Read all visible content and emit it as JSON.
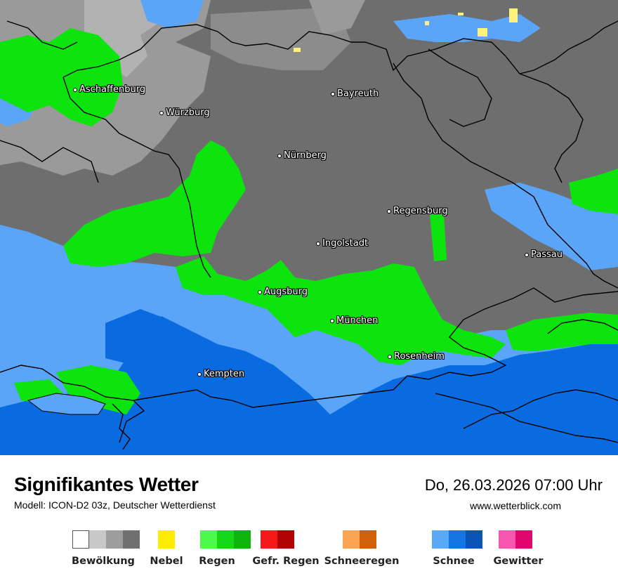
{
  "map": {
    "colors": {
      "cloud_dark": "#6e6e6e",
      "cloud_mid": "#8c8c8c",
      "cloud_light": "#ababab",
      "rain": "#0de40d",
      "snow_light": "#5aa5f8",
      "snow_dark": "#0a6be0",
      "fog": "#fff27a",
      "border": "#000000"
    },
    "cities": [
      {
        "name": "Aschaffenburg"
      },
      {
        "name": "Würzburg"
      },
      {
        "name": "Bayreuth"
      },
      {
        "name": "Nürnberg"
      },
      {
        "name": "Regensburg"
      },
      {
        "name": "Ingolstadt"
      },
      {
        "name": "Passau"
      },
      {
        "name": "Augsburg"
      },
      {
        "name": "München"
      },
      {
        "name": "Rosenheim"
      },
      {
        "name": "Kempten"
      }
    ]
  },
  "footer": {
    "title": "Signifikantes Wetter",
    "subtitle": "Modell: ICON-D2 03z, Deutscher Wetterdienst",
    "datetime": "Do, 26.03.2026 07:00 Uhr",
    "website": "www.wetterblick.com"
  },
  "legend": [
    {
      "label": "Bewölkung",
      "colors": [
        "#ffffff",
        "#c8c8c8",
        "#9d9d9d",
        "#707070"
      ]
    },
    {
      "label": "Nebel",
      "colors": [
        "#ffec00"
      ]
    },
    {
      "label": "Regen",
      "colors": [
        "#4bfa4b",
        "#16d816",
        "#0cb40c"
      ]
    },
    {
      "label": "Gefr. Regen",
      "colors": [
        "#f41a1a",
        "#b20303"
      ]
    },
    {
      "label": "Schneeregen",
      "colors": [
        "#fba554",
        "#d1600c"
      ]
    },
    {
      "label": "Schnee",
      "colors": [
        "#5aa8f8",
        "#1575e3",
        "#0a55b4"
      ]
    },
    {
      "label": "Gewitter",
      "colors": [
        "#f756b0",
        "#e0066e"
      ]
    }
  ]
}
